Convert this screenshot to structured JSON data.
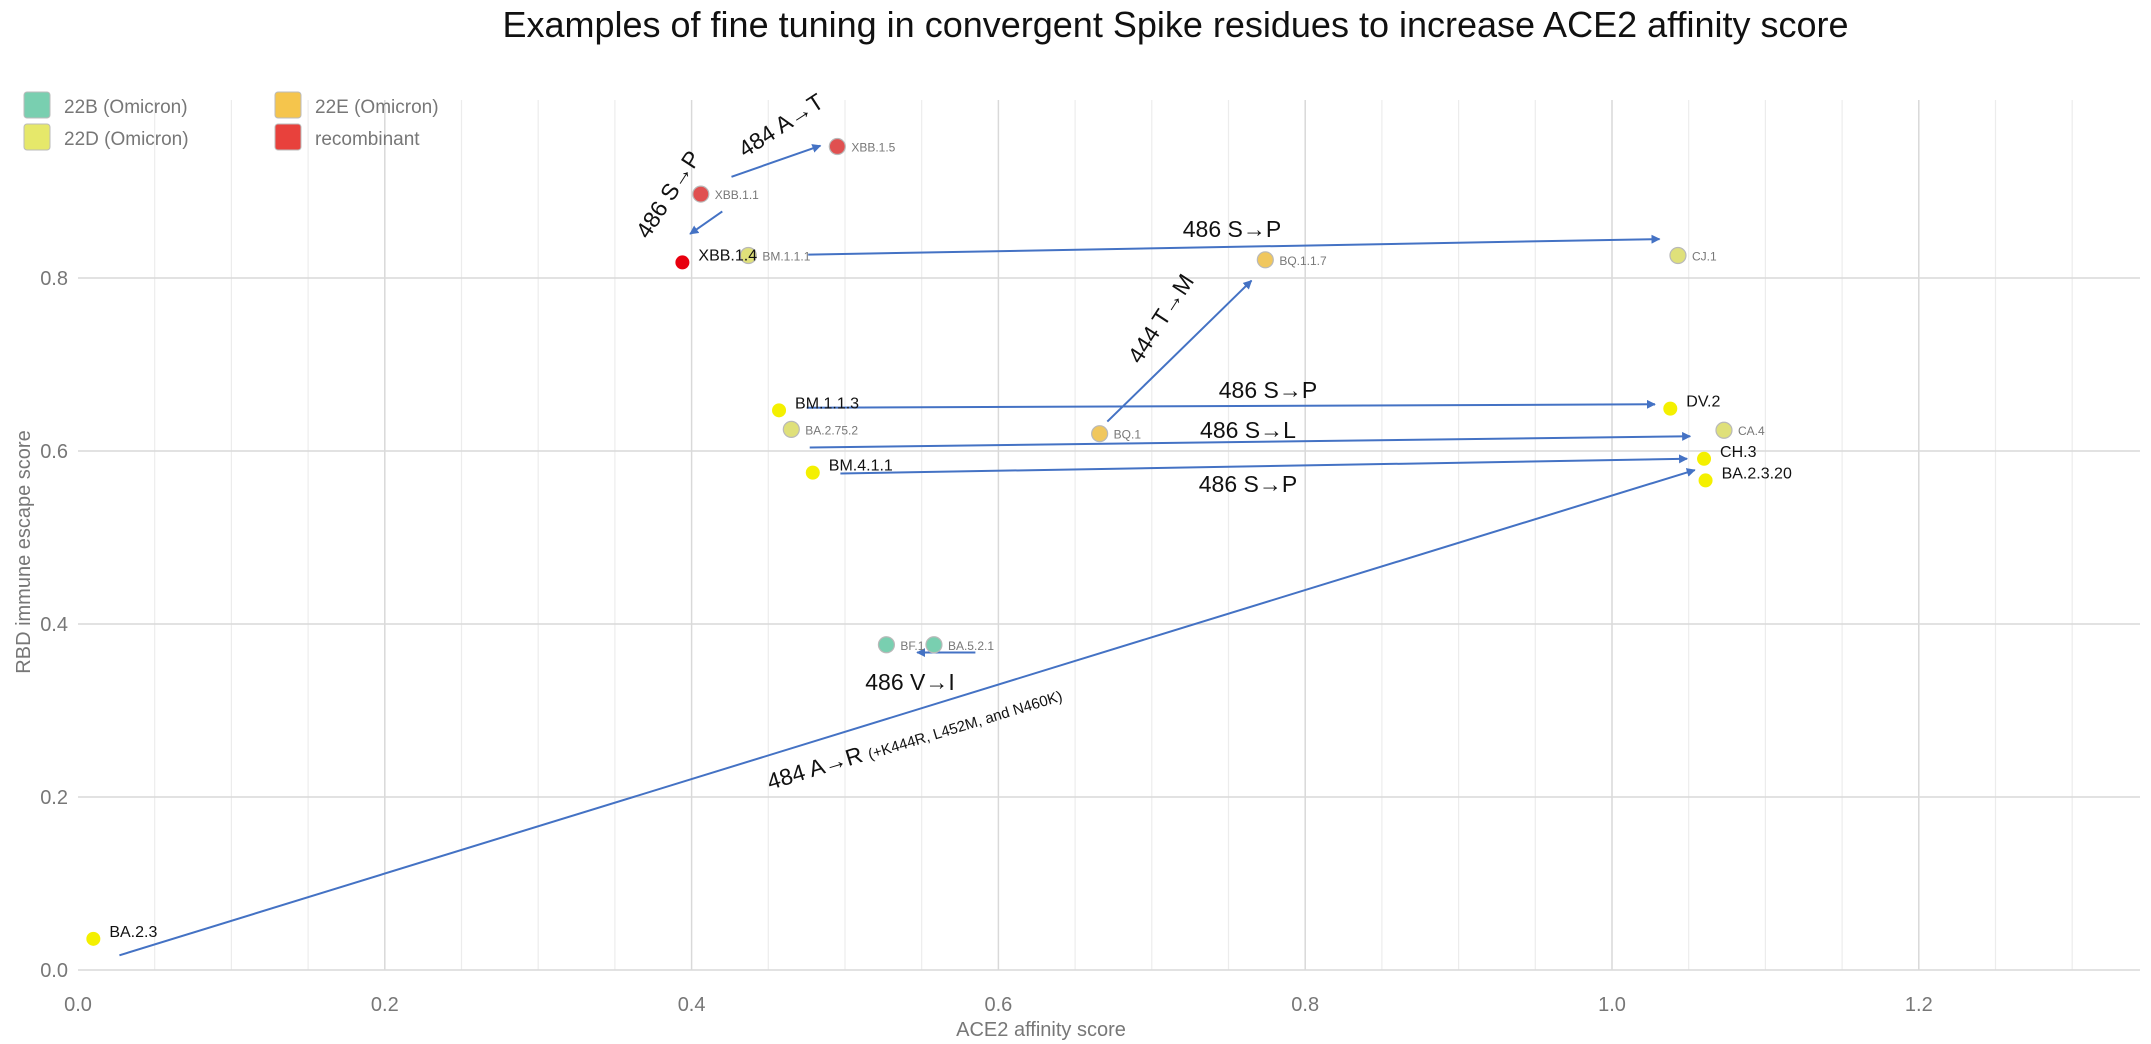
{
  "chart_data": {
    "type": "scatter",
    "title": "Examples of fine tuning in convergent Spike residues to increase ACE2 affinity score",
    "xlabel": "ACE2 affinity score",
    "ylabel": "RBD immune escape score",
    "xlim": [
      0.0,
      1.35
    ],
    "ylim": [
      0.0,
      0.97
    ],
    "x_ticks": [
      "0.0",
      "0.2",
      "0.4",
      "0.6",
      "0.8",
      "1.0",
      "1.2"
    ],
    "y_ticks": [
      "0.0",
      "0.2",
      "0.4",
      "0.6",
      "0.8"
    ],
    "grid": true,
    "legend_position": "top-left",
    "legend": [
      {
        "name": "22B (Omicron)",
        "color": "#79cfb0"
      },
      {
        "name": "22E (Omicron)",
        "color": "#f5c54c"
      },
      {
        "name": "22D (Omicron)",
        "color": "#e6e86a"
      },
      {
        "name": "recombinant",
        "color": "#e8413c"
      }
    ],
    "points": [
      {
        "name": "XBB.1.5",
        "x": 0.495,
        "y": 0.952,
        "color": "#e05050",
        "style": "small"
      },
      {
        "name": "XBB.1.1",
        "x": 0.406,
        "y": 0.897,
        "color": "#e05050",
        "style": "small"
      },
      {
        "name": "XBB.1.4",
        "x": 0.394,
        "y": 0.818,
        "color": "#e8000f",
        "style": "big"
      },
      {
        "name": "BM.1.1.1",
        "x": 0.437,
        "y": 0.826,
        "color": "#dfe07a",
        "style": "small"
      },
      {
        "name": "BQ.1.1.7",
        "x": 0.774,
        "y": 0.821,
        "color": "#f0c75e",
        "style": "small"
      },
      {
        "name": "CJ.1",
        "x": 1.043,
        "y": 0.826,
        "color": "#dfe07a",
        "style": "small"
      },
      {
        "name": "BM.1.1.3",
        "x": 0.457,
        "y": 0.647,
        "color": "#f4f000",
        "style": "big"
      },
      {
        "name": "DV.2",
        "x": 1.038,
        "y": 0.649,
        "color": "#f4f000",
        "style": "big"
      },
      {
        "name": "BA.2.75.2",
        "x": 0.465,
        "y": 0.625,
        "color": "#dfe07a",
        "style": "small"
      },
      {
        "name": "BQ.1",
        "x": 0.666,
        "y": 0.62,
        "color": "#f0c75e",
        "style": "small"
      },
      {
        "name": "CA.4",
        "x": 1.073,
        "y": 0.624,
        "color": "#dfe07a",
        "style": "small"
      },
      {
        "name": "CH.3",
        "x": 1.06,
        "y": 0.591,
        "color": "#f4f000",
        "style": "big"
      },
      {
        "name": "BM.4.1.1",
        "x": 0.479,
        "y": 0.575,
        "color": "#f4f000",
        "style": "big"
      },
      {
        "name": "BA.2.3.20",
        "x": 1.061,
        "y": 0.566,
        "color": "#f4f000",
        "style": "big"
      },
      {
        "name": "BF.1",
        "x": 0.527,
        "y": 0.376,
        "color": "#79cfb0",
        "style": "small"
      },
      {
        "name": "BA.5.2.1",
        "x": 0.558,
        "y": 0.376,
        "color": "#79cfb0",
        "style": "small"
      },
      {
        "name": "BA.2.3",
        "x": 0.01,
        "y": 0.036,
        "color": "#f4f000",
        "style": "big"
      }
    ],
    "annotations": [
      {
        "text": "484 A→T",
        "sub": "",
        "from": [
          0.426,
          0.917
        ],
        "to": [
          0.484,
          0.953
        ]
      },
      {
        "text": "486 S→P",
        "sub": "",
        "from": [
          0.42,
          0.877
        ],
        "to": [
          0.399,
          0.851
        ]
      },
      {
        "text": "486 S→P",
        "sub": "",
        "from": [
          0.476,
          0.827
        ],
        "to": [
          1.031,
          0.845
        ]
      },
      {
        "text": "444 T→M",
        "sub": "",
        "from": [
          0.671,
          0.634
        ],
        "to": [
          0.765,
          0.797
        ]
      },
      {
        "text": "486 S→P",
        "sub": "",
        "from": [
          0.475,
          0.65
        ],
        "to": [
          1.028,
          0.654
        ]
      },
      {
        "text": "486 S→L",
        "sub": "",
        "from": [
          0.477,
          0.604
        ],
        "to": [
          1.051,
          0.617
        ]
      },
      {
        "text": "486 S→P",
        "sub": "",
        "from": [
          0.497,
          0.574
        ],
        "to": [
          1.049,
          0.591
        ]
      },
      {
        "text": "486 V→I",
        "sub": "",
        "from": [
          0.585,
          0.367
        ],
        "to": [
          0.547,
          0.367
        ]
      },
      {
        "text": "484 A→R",
        "sub": "(+K444R, L452M, and N460K)",
        "from": [
          0.027,
          0.017
        ],
        "to": [
          1.054,
          0.578
        ]
      }
    ]
  }
}
